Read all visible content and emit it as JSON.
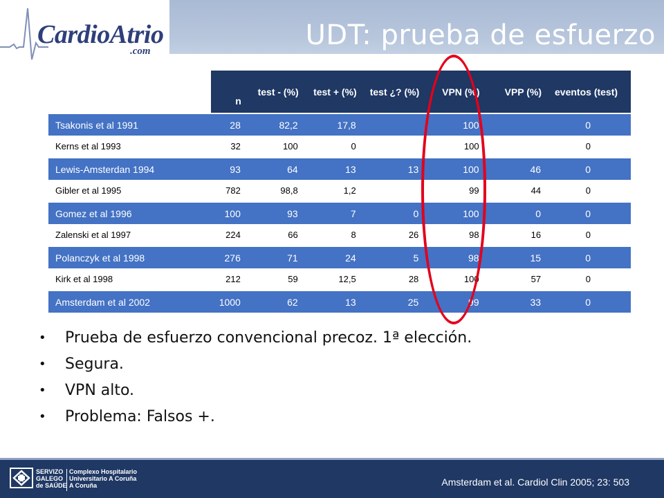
{
  "header": {
    "logo_text": "CardioAtrio",
    "logo_sub": ".com",
    "title": "UDT: prueba de esfuerzo"
  },
  "table": {
    "headers": [
      "n",
      "test - (%)",
      "test + (%)",
      "test ¿? (%)",
      "VPN (%)",
      "VPP (%)",
      "eventos (test)"
    ],
    "rows": [
      {
        "study": "Tsakonis et al 1991",
        "values": [
          "28",
          "82,2",
          "17,8",
          "",
          "100",
          "",
          "0"
        ]
      },
      {
        "study": "Kerns et al 1993",
        "values": [
          "32",
          "100",
          "0",
          "",
          "100",
          "",
          "0"
        ]
      },
      {
        "study": "Lewis-Amsterdan 1994",
        "values": [
          "93",
          "64",
          "13",
          "13",
          "100",
          "46",
          "0"
        ]
      },
      {
        "study": "Gibler et al 1995",
        "values": [
          "782",
          "98,8",
          "1,2",
          "",
          "99",
          "44",
          "0"
        ]
      },
      {
        "study": "Gomez et al 1996",
        "values": [
          "100",
          "93",
          "7",
          "0",
          "100",
          "0",
          "0"
        ]
      },
      {
        "study": "Zalenski et al 1997",
        "values": [
          "224",
          "66",
          "8",
          "26",
          "98",
          "16",
          "0"
        ]
      },
      {
        "study": "Polanczyk et al 1998",
        "values": [
          "276",
          "71",
          "24",
          "5",
          "98",
          "15",
          "0"
        ]
      },
      {
        "study": "Kirk et al 1998",
        "values": [
          "212",
          "59",
          "12,5",
          "28",
          "100",
          "57",
          "0"
        ]
      },
      {
        "study": "Amsterdam et al 2002",
        "values": [
          "1000",
          "62",
          "13",
          "25",
          "99",
          "33",
          "0"
        ]
      }
    ]
  },
  "bullets": [
    "Prueba de esfuerzo convencional precoz. 1ª elección.",
    "Segura.",
    "VPN alto.",
    "Problema: Falsos +."
  ],
  "footer": {
    "inst_left": [
      "SERVIZO",
      "GALEGO",
      "de SAÚDE"
    ],
    "inst_right": [
      "Complexo Hospitalario",
      "Universitario A Coruña",
      "A Coruña"
    ],
    "citation": "Amsterdam et al. Cardiol Clin 2005; 23: 503"
  },
  "colors": {
    "header_band": "#a9bad4",
    "table_header": "#1f3864",
    "row_highlight": "#4472c4",
    "ring": "#e3001b",
    "footer": "#1f3864"
  }
}
